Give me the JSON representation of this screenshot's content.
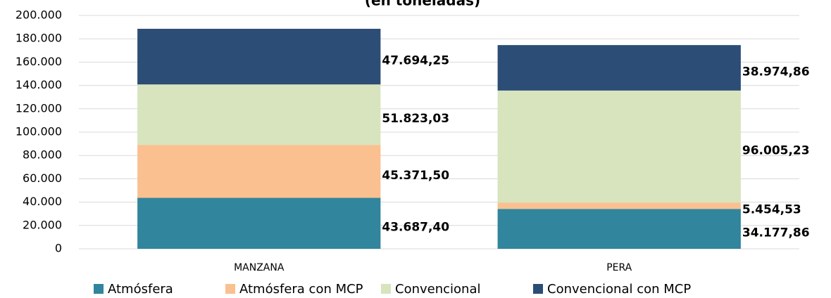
{
  "chart_data": {
    "type": "stacked_bar",
    "title": "(en toneladas)",
    "categories": [
      "MANZANA",
      "PERA"
    ],
    "series": [
      {
        "name": "Atmósfera",
        "color": "#31859c",
        "label_color": "#215968",
        "values": [
          43687.4,
          34177.86
        ],
        "value_labels": [
          "43.687,40",
          "34.177,86"
        ]
      },
      {
        "name": "Atmósfera con MCP",
        "color": "#fac090",
        "label_color": "#e46c0a",
        "values": [
          45371.5,
          5454.53
        ],
        "value_labels": [
          "45.371,50",
          "5.454,53"
        ]
      },
      {
        "name": "Convencional",
        "color": "#d7e4bd",
        "label_color": "#77933c",
        "values": [
          51823.03,
          96005.23
        ],
        "value_labels": [
          "51.823,03",
          "96.005,23"
        ]
      },
      {
        "name": "Convencional con MCP",
        "color": "#2c4d75",
        "label_color": "#1f3864",
        "values": [
          47694.25,
          38974.86
        ],
        "value_labels": [
          "47.694,25",
          "38.974,86"
        ]
      }
    ],
    "ylim": [
      0,
      200000
    ],
    "yticks": [
      0,
      {
        "value": 20000,
        "label": "20.000"
      },
      {
        "value": 40000,
        "label": "40.000"
      },
      {
        "value": 60000,
        "label": "60.000"
      },
      {
        "value": 80000,
        "label": "80.000"
      },
      {
        "value": 100000,
        "label": "100.000"
      },
      {
        "value": 120000,
        "label": "120.000"
      },
      {
        "value": 140000,
        "label": "140.000"
      },
      {
        "value": 160000,
        "label": "160.000"
      },
      {
        "value": 180000,
        "label": "180.000"
      },
      {
        "value": 200000,
        "label": "200.000"
      }
    ],
    "grid": true,
    "legend": "bottom"
  }
}
